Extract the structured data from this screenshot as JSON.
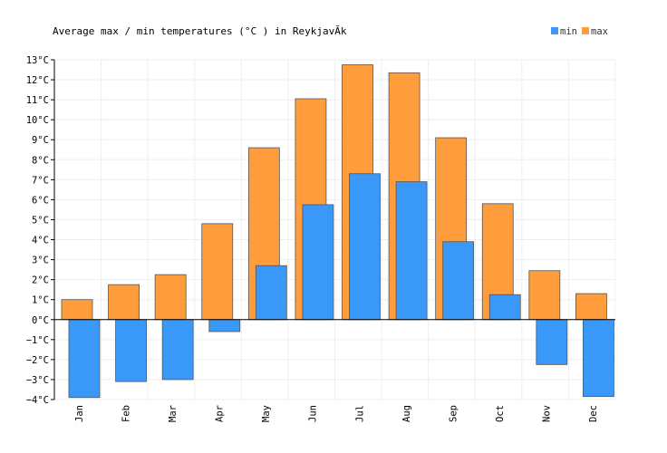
{
  "chart_data": {
    "type": "bar",
    "title": "Average max / min temperatures (°C ) in ReykjavÃ­k",
    "categories": [
      "Jan",
      "Feb",
      "Mar",
      "Apr",
      "May",
      "Jun",
      "Jul",
      "Aug",
      "Sep",
      "Oct",
      "Nov",
      "Dec"
    ],
    "series": [
      {
        "name": "min",
        "color": "#3a98f8",
        "values": [
          -3.9,
          -3.1,
          -3.0,
          -0.6,
          2.7,
          5.75,
          7.3,
          6.9,
          3.9,
          1.25,
          -2.25,
          -3.85
        ]
      },
      {
        "name": "max",
        "color": "#ff9c3b",
        "values": [
          1.0,
          1.75,
          2.25,
          4.8,
          8.6,
          11.05,
          12.75,
          12.35,
          9.1,
          5.8,
          2.45,
          1.3
        ]
      }
    ],
    "ylim": [
      -4,
      13
    ],
    "yticks": [
      "−4°C",
      "−3°C",
      "−2°C",
      "−1°C",
      "0°C",
      "1°C",
      "2°C",
      "3°C",
      "4°C",
      "5°C",
      "6°C",
      "7°C",
      "8°C",
      "9°C",
      "10°C",
      "11°C",
      "12°C",
      "13°C"
    ],
    "legend": {
      "position": "top-right",
      "items": [
        "min",
        "max"
      ]
    },
    "grid": true
  }
}
